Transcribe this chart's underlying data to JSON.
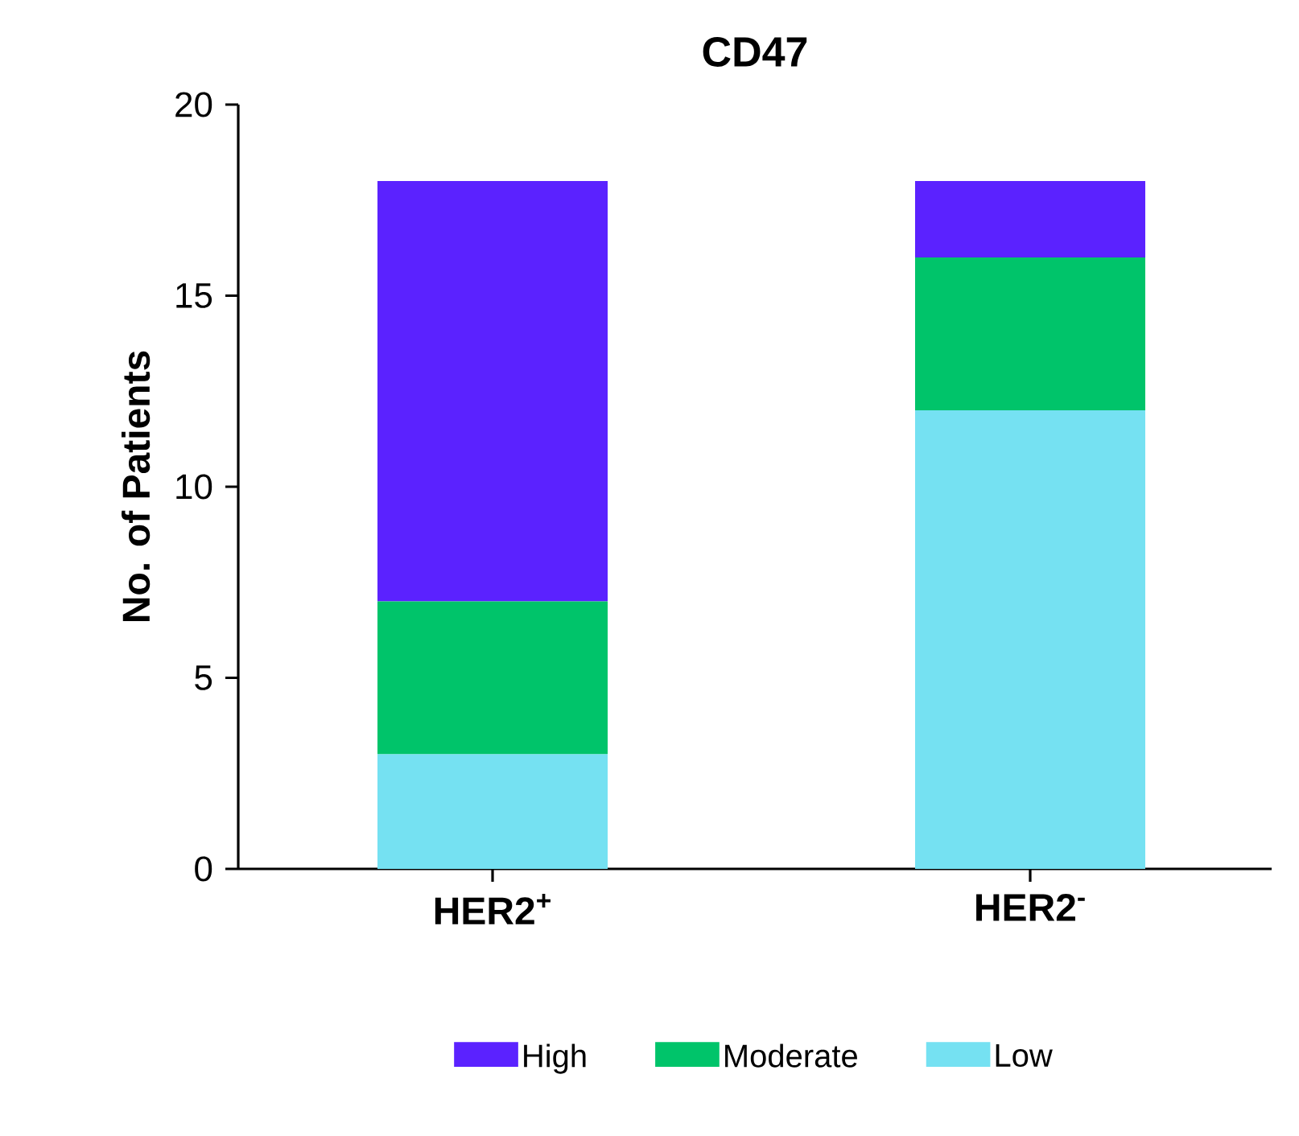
{
  "chart_data": {
    "type": "bar",
    "title": "CD47",
    "ylabel": "No. of Patients",
    "categories": [
      "HER2$^{+}$",
      "HER2$^{-}$"
    ],
    "series": [
      {
        "name": "Low",
        "color": "#75e1f2",
        "values": [
          3,
          12
        ]
      },
      {
        "name": "Moderate",
        "color": "#00c46a",
        "values": [
          4,
          4
        ]
      },
      {
        "name": "High",
        "color": "#5b22ff",
        "values": [
          11,
          2
        ]
      }
    ],
    "stacked": true,
    "ylim": [
      0,
      20
    ],
    "yticks": [
      0,
      5,
      10,
      15,
      20
    ],
    "legend": "bottom"
  }
}
